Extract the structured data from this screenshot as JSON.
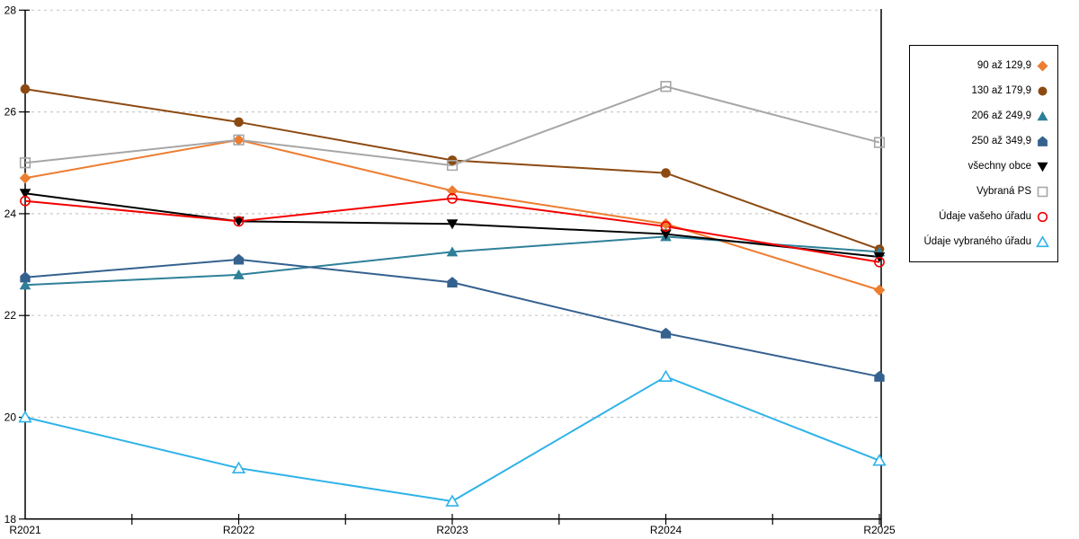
{
  "chart_data": {
    "type": "line",
    "title": "",
    "xlabel": "",
    "ylabel": "",
    "x_labels": [
      "R2021",
      "R2022",
      "R2023",
      "R2024",
      "R2025"
    ],
    "ylim": [
      18,
      28
    ],
    "yticks": [
      18,
      20,
      22,
      24,
      26,
      28
    ],
    "grid": "horizontal-dashed",
    "grid_color": "#c9c9c9",
    "axis_color": "#000000",
    "legend_position": "right-box",
    "series": [
      {
        "name": "90 až 129,9",
        "marker": "diamond",
        "style": "filled",
        "color": "#ED7D31",
        "values": [
          24.7,
          25.45,
          24.45,
          23.8,
          22.5
        ]
      },
      {
        "name": "130 až 179,9",
        "marker": "circle",
        "style": "filled",
        "color": "#8C4A12",
        "values": [
          26.45,
          25.8,
          25.05,
          24.8,
          23.3
        ]
      },
      {
        "name": "206 až 249,9",
        "marker": "triangle-up",
        "style": "filled",
        "color": "#2E8099",
        "values": [
          22.6,
          22.8,
          23.25,
          23.55,
          23.25
        ]
      },
      {
        "name": "250 až 349,9",
        "marker": "pentagon",
        "style": "filled",
        "color": "#35618F",
        "values": [
          22.75,
          23.1,
          22.65,
          21.65,
          20.8
        ]
      },
      {
        "name": "všechny obce",
        "marker": "triangle-down",
        "style": "filled",
        "color": "#000000",
        "values": [
          24.4,
          23.85,
          23.8,
          23.6,
          23.15
        ]
      },
      {
        "name": "Vybraná PS",
        "marker": "square",
        "style": "open",
        "color": "#A6A6A6",
        "values": [
          25.0,
          25.45,
          24.95,
          26.5,
          25.4
        ]
      },
      {
        "name": "Údaje vašeho úřadu",
        "marker": "circle",
        "style": "open",
        "color": "#F40000",
        "values": [
          24.25,
          23.85,
          24.3,
          23.75,
          23.05
        ]
      },
      {
        "name": "Údaje vybraného úřadu",
        "marker": "triangle-up",
        "style": "open",
        "color": "#2FB3E8",
        "values": [
          20.0,
          19.0,
          18.35,
          20.8,
          19.15
        ]
      }
    ]
  }
}
